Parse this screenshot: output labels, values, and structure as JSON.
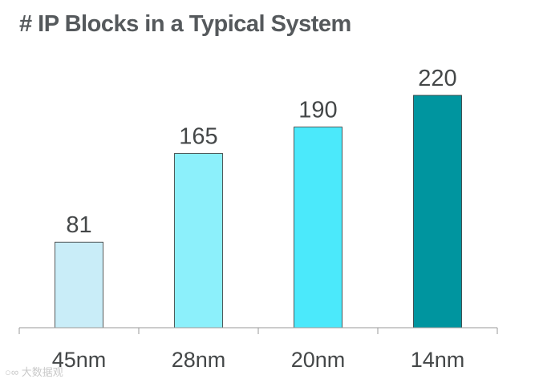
{
  "chart_data": {
    "type": "bar",
    "title": "# IP Blocks in a Typical System",
    "xlabel": "",
    "ylabel": "",
    "categories": [
      "45nm",
      "28nm",
      "20nm",
      "14nm"
    ],
    "values": [
      81,
      165,
      190,
      220
    ],
    "data_labels": [
      "81",
      "165",
      "190",
      "220"
    ],
    "ylim": [
      0,
      240
    ],
    "grid": false,
    "legend": "none",
    "colors": {
      "fills": [
        "#c9edf8",
        "#8cf0fb",
        "#4be9fb",
        "#00959f"
      ],
      "stroke": "#333333",
      "axis": "#9a9a9a"
    }
  },
  "watermark": "大数据观"
}
